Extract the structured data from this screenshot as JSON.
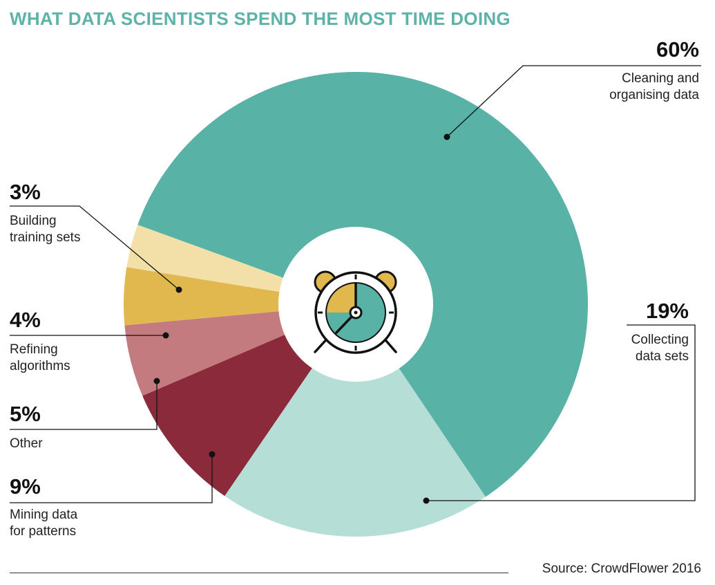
{
  "colors": {
    "title": "#5db3a7",
    "cleaning": "#58b2a6",
    "collecting": "#b5dfd6",
    "mining": "#8a2a3a",
    "other": "#c47b80",
    "refining": "#e0b84e",
    "training": "#f2e0a8"
  },
  "icon": "alarm-clock-icon",
  "source": "Source: CrowdFlower 2016",
  "chart_data": {
    "type": "pie",
    "title": "WHAT DATA SCIENTISTS SPEND THE MOST TIME DOING",
    "legend": "callout labels around the donut",
    "slices": [
      {
        "key": "cleaning",
        "pct_label": "60%",
        "value": 60,
        "label_lines": [
          "Cleaning and",
          "organising data"
        ]
      },
      {
        "key": "collecting",
        "pct_label": "19%",
        "value": 19,
        "label_lines": [
          "Collecting",
          "data sets"
        ]
      },
      {
        "key": "mining",
        "pct_label": "9%",
        "value": 9,
        "label_lines": [
          "Mining data",
          "for patterns"
        ]
      },
      {
        "key": "other",
        "pct_label": "5%",
        "value": 5,
        "label_lines": [
          "Other"
        ]
      },
      {
        "key": "refining",
        "pct_label": "4%",
        "value": 4,
        "label_lines": [
          "Refining",
          "algorithms"
        ]
      },
      {
        "key": "training",
        "pct_label": "3%",
        "value": 3,
        "label_lines": [
          "Building",
          "training sets"
        ]
      }
    ]
  }
}
